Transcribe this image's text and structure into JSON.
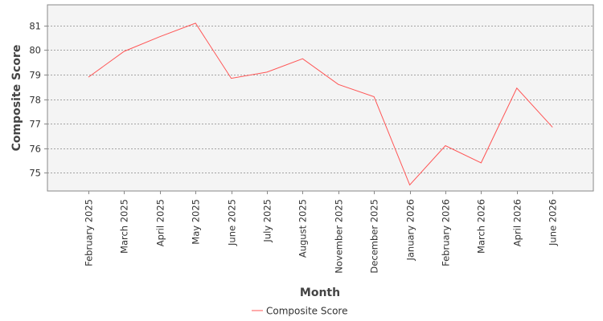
{
  "chart_data": {
    "type": "line",
    "title": "",
    "xlabel": "Month",
    "ylabel": "Composite Score",
    "categories": [
      "February 2025",
      "March 2025",
      "April 2025",
      "May 2025",
      "June 2025",
      "July 2025",
      "August 2025",
      "November 2025",
      "December 2025",
      "January 2026",
      "February 2026",
      "March 2026",
      "April 2026",
      "June 2026"
    ],
    "series": [
      {
        "name": "Composite Score",
        "color": "#ff5555",
        "values": [
          78.9,
          79.95,
          80.55,
          81.1,
          78.85,
          79.1,
          79.65,
          78.6,
          78.1,
          74.5,
          76.1,
          75.4,
          78.45,
          76.85
        ]
      }
    ],
    "yticks": [
      75,
      76,
      77,
      78,
      79,
      80,
      81
    ],
    "ylim": [
      74.25,
      81.85
    ],
    "grid": true,
    "legend": "bottom-center",
    "colors": {
      "plot_background": "#f4f4f4",
      "gridline": "#888888",
      "axis": "#888888"
    }
  }
}
